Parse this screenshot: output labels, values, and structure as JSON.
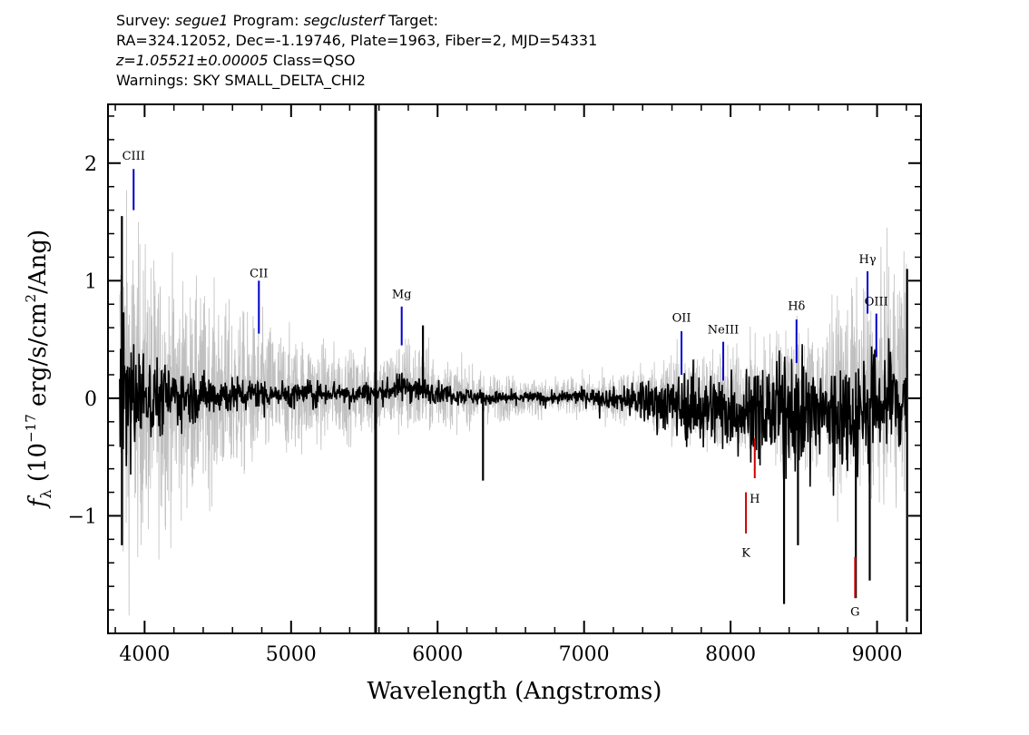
{
  "header": {
    "survey_label": "Survey:",
    "survey": "segue1",
    "program_label": "Program:",
    "program": "segclusterf",
    "target_label": "Target:",
    "line2": "RA=324.12052, Dec=-1.19746, Plate=1963, Fiber=2, MJD=54331",
    "redshift": "z=1.05521±0.00005",
    "class_text": "Class=QSO",
    "warnings": "Warnings: SKY SMALL_DELTA_CHI2"
  },
  "chart_data": {
    "type": "line",
    "xlabel": "Wavelength (Angstroms)",
    "ylabel": "f_λ (10^-17 erg/s/cm²/Ang)",
    "xlim": [
      3750,
      9300
    ],
    "ylim": [
      -2.0,
      2.5
    ],
    "x_ticks": [
      4000,
      5000,
      6000,
      7000,
      8000,
      9000
    ],
    "y_ticks": [
      -1,
      0,
      1,
      2
    ],
    "x_tick_labels": [
      "4000",
      "5000",
      "6000",
      "7000",
      "8000",
      "9000"
    ],
    "y_tick_labels": [
      "−1",
      "0",
      "1",
      "2"
    ],
    "series": [
      {
        "role": "noise/error spectrum",
        "color": "#c0c0c0",
        "x": [
          3830,
          3900,
          4000,
          4100,
          4200,
          4300,
          4400,
          4500,
          4600,
          4700,
          4800,
          4900,
          5000,
          5100,
          5200,
          5300,
          5400,
          5500,
          5600,
          5700,
          5800,
          5900,
          6000,
          6200,
          6400,
          6600,
          6800,
          7000,
          7200,
          7400,
          7600,
          7800,
          8000,
          8200,
          8400,
          8600,
          8800,
          9000,
          9200
        ],
        "y": [
          0.0,
          0.05,
          0.02,
          0.0,
          0.03,
          0.01,
          0.02,
          0.04,
          0.02,
          0.03,
          0.05,
          0.04,
          0.03,
          0.05,
          0.04,
          0.06,
          0.03,
          0.05,
          0.04,
          0.08,
          0.1,
          0.07,
          0.05,
          0.02,
          0.0,
          0.01,
          0.0,
          0.02,
          0.0,
          0.01,
          0.02,
          0.0,
          -0.02,
          0.0,
          0.05,
          -0.05,
          0.08,
          0.05,
          0.2
        ],
        "amplitude": [
          1.6,
          1.3,
          1.1,
          1.0,
          0.9,
          0.8,
          0.75,
          0.7,
          0.65,
          0.6,
          0.55,
          0.5,
          0.45,
          0.4,
          0.38,
          0.35,
          0.33,
          0.32,
          0.3,
          0.35,
          0.4,
          0.35,
          0.28,
          0.22,
          0.18,
          0.15,
          0.14,
          0.15,
          0.18,
          0.25,
          0.32,
          0.38,
          0.4,
          0.45,
          0.55,
          0.6,
          0.7,
          0.75,
          1.0
        ]
      },
      {
        "role": "flux",
        "color": "#000000",
        "x": [
          3830,
          3900,
          4000,
          4100,
          4200,
          4300,
          4400,
          4500,
          4600,
          4700,
          4800,
          4900,
          5000,
          5100,
          5200,
          5300,
          5400,
          5500,
          5600,
          5700,
          5800,
          5900,
          6000,
          6200,
          6400,
          6600,
          6800,
          7000,
          7200,
          7400,
          7600,
          7800,
          8000,
          8200,
          8400,
          8600,
          8800,
          9000,
          9200
        ],
        "y": [
          0.0,
          0.03,
          0.02,
          0.0,
          0.03,
          0.01,
          0.02,
          0.04,
          0.02,
          0.03,
          0.05,
          0.04,
          0.03,
          0.05,
          0.04,
          0.06,
          0.03,
          0.05,
          0.04,
          0.08,
          0.1,
          0.07,
          0.05,
          0.02,
          0.0,
          0.01,
          0.0,
          0.02,
          0.0,
          -0.02,
          -0.05,
          -0.08,
          -0.1,
          -0.12,
          -0.1,
          -0.15,
          -0.12,
          -0.05,
          0.0
        ],
        "amplitude": [
          0.8,
          0.6,
          0.45,
          0.35,
          0.3,
          0.25,
          0.22,
          0.2,
          0.18,
          0.16,
          0.14,
          0.13,
          0.12,
          0.12,
          0.11,
          0.11,
          0.1,
          0.1,
          0.1,
          0.12,
          0.15,
          0.12,
          0.1,
          0.08,
          0.07,
          0.06,
          0.06,
          0.07,
          0.1,
          0.2,
          0.28,
          0.35,
          0.38,
          0.42,
          0.5,
          0.5,
          0.55,
          0.5,
          0.6
        ]
      }
    ],
    "features": [
      {
        "x": 5577,
        "y0": -2.0,
        "y1": 2.5,
        "color": "#000000",
        "kind": "sky line"
      },
      {
        "x": 9205,
        "y0": -1.9,
        "y1": 1.1,
        "color": "#000000",
        "kind": "spike"
      },
      {
        "x": 8365,
        "y0": -1.75,
        "y1": 0.0,
        "color": "#000000",
        "kind": "absorption"
      },
      {
        "x": 8855,
        "y0": -1.7,
        "y1": 0.0,
        "color": "#000000",
        "kind": "absorption"
      },
      {
        "x": 8950,
        "y0": -1.55,
        "y1": 0.0,
        "color": "#000000",
        "kind": "absorption"
      },
      {
        "x": 8460,
        "y0": -1.25,
        "y1": 0.0,
        "color": "#000000",
        "kind": "absorption"
      },
      {
        "x": 3845,
        "y0": -1.25,
        "y1": 1.55,
        "color": "#000000",
        "kind": "spike"
      },
      {
        "x": 5900,
        "y0": 0.0,
        "y1": 0.62,
        "color": "#000000",
        "kind": "emission"
      },
      {
        "x": 6310,
        "y0": -0.7,
        "y1": 0.0,
        "color": "#000000",
        "kind": "absorption"
      }
    ],
    "annotations": [
      {
        "label": "CIII",
        "x": 3925,
        "line_y": [
          1.6,
          1.95
        ],
        "label_y": 2.0,
        "color": "#0000cc"
      },
      {
        "label": "CII",
        "x": 4780,
        "line_y": [
          0.55,
          1.0
        ],
        "label_y": 1.0,
        "color": "#0000cc"
      },
      {
        "label": "Mg",
        "x": 5755,
        "line_y": [
          0.45,
          0.78
        ],
        "label_y": 0.82,
        "color": "#0000cc"
      },
      {
        "label": "OII",
        "x": 7665,
        "line_y": [
          0.2,
          0.57
        ],
        "label_y": 0.62,
        "color": "#0000cc"
      },
      {
        "label": "NeIII",
        "x": 7950,
        "line_y": [
          0.15,
          0.48
        ],
        "label_y": 0.52,
        "color": "#0000cc"
      },
      {
        "label": "Hδ",
        "x": 8450,
        "line_y": [
          0.3,
          0.67
        ],
        "label_y": 0.72,
        "color": "#0000cc"
      },
      {
        "label": "Hγ",
        "x": 8935,
        "line_y": [
          0.72,
          1.08
        ],
        "label_y": 1.12,
        "color": "#0000cc"
      },
      {
        "label": "OIII",
        "x": 8995,
        "line_y": [
          0.35,
          0.72
        ],
        "label_y": 0.76,
        "color": "#0000cc"
      },
      {
        "label": "H",
        "x": 8165,
        "line_y": [
          -0.68,
          -0.34
        ],
        "label_y": -0.92,
        "color": "#cc0000"
      },
      {
        "label": "K",
        "x": 8105,
        "line_y": [
          -1.15,
          -0.8
        ],
        "label_y": -1.38,
        "color": "#cc0000"
      },
      {
        "label": "G",
        "x": 8850,
        "line_y": [
          -1.7,
          -1.35
        ],
        "label_y": -1.88,
        "color": "#cc0000"
      }
    ]
  }
}
